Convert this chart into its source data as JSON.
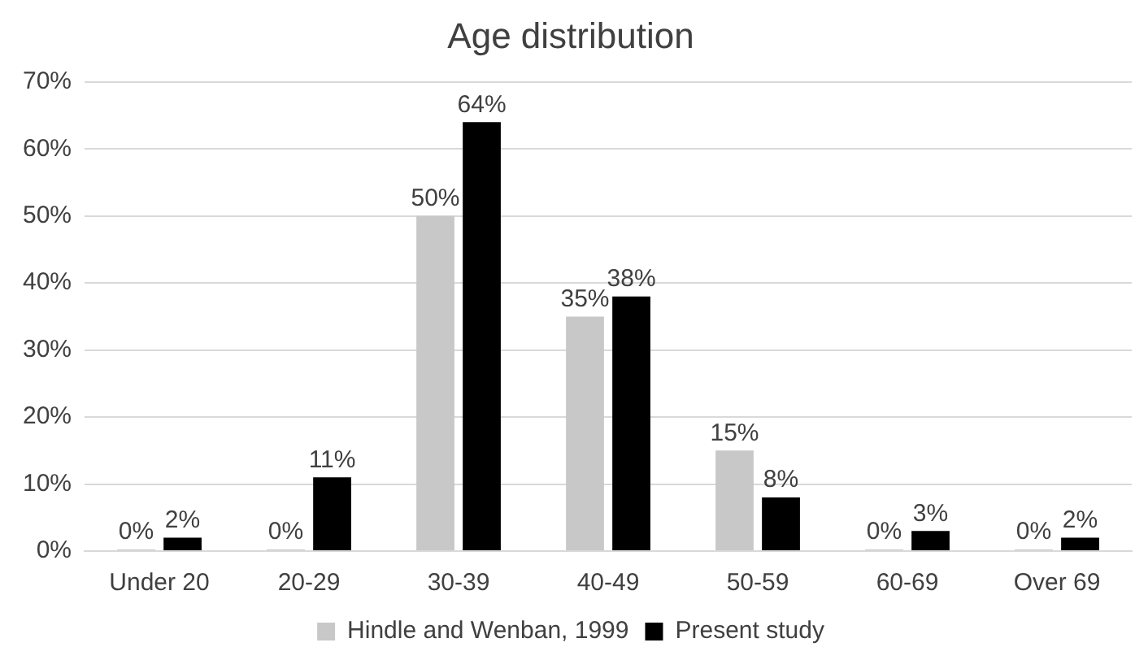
{
  "chart_data": {
    "type": "bar",
    "title": "Age distribution",
    "categories": [
      "Under 20",
      "20-29",
      "30-39",
      "40-49",
      "50-59",
      "60-69",
      "Over 69"
    ],
    "series": [
      {
        "name": "Hindle and Wenban, 1999",
        "color": "#c8c8c8",
        "values": [
          0,
          0,
          50,
          35,
          15,
          0,
          0
        ],
        "value_labels": [
          "0%",
          "0%",
          "50%",
          "35%",
          "15%",
          "0%",
          "0%"
        ]
      },
      {
        "name": "Present study",
        "color": "#000000",
        "values": [
          2,
          11,
          64,
          38,
          8,
          3,
          2
        ],
        "value_labels": [
          "2%",
          "11%",
          "64%",
          "38%",
          "8%",
          "3%",
          "2%"
        ]
      }
    ],
    "ylim": [
      0,
      70
    ],
    "yticks": [
      {
        "value": 0,
        "label": "0%"
      },
      {
        "value": 10,
        "label": "10%"
      },
      {
        "value": 20,
        "label": "20%"
      },
      {
        "value": 30,
        "label": "30%"
      },
      {
        "value": 40,
        "label": "40%"
      },
      {
        "value": 50,
        "label": "50%"
      },
      {
        "value": 60,
        "label": "60%"
      },
      {
        "value": 70,
        "label": "70%"
      }
    ],
    "grid": "y",
    "legend": "bottom"
  }
}
